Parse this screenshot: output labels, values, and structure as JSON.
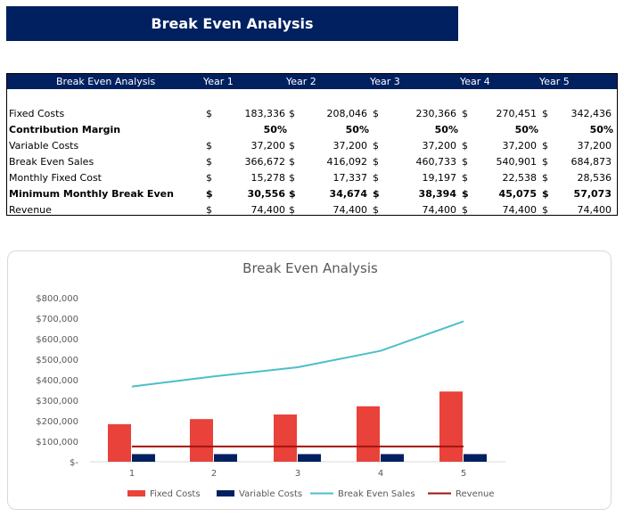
{
  "title": "Break Even Analysis",
  "table": {
    "header": [
      "Break Even Analysis",
      "Year 1",
      "Year 2",
      "Year 3",
      "Year 4",
      "Year 5"
    ],
    "rows": [
      {
        "label": "Fixed Costs",
        "bold": false,
        "currency": true,
        "values": [
          "183,336",
          "208,046",
          "230,366",
          "270,451",
          "342,436"
        ]
      },
      {
        "label": "Contribution Margin",
        "bold": true,
        "currency": false,
        "values": [
          "50%",
          "50%",
          "50%",
          "50%",
          "50%"
        ]
      },
      {
        "label": "Variable Costs",
        "bold": false,
        "currency": true,
        "values": [
          "37,200",
          "37,200",
          "37,200",
          "37,200",
          "37,200"
        ]
      },
      {
        "label": "Break Even Sales",
        "bold": false,
        "currency": true,
        "values": [
          "366,672",
          "416,092",
          "460,733",
          "540,901",
          "684,873"
        ]
      },
      {
        "label": "Monthly Fixed Cost",
        "bold": false,
        "currency": true,
        "values": [
          "15,278",
          "17,337",
          "19,197",
          "22,538",
          "28,536"
        ]
      },
      {
        "label": "Minimum Monthly Break Even",
        "bold": true,
        "currency": true,
        "values": [
          "30,556",
          "34,674",
          "38,394",
          "45,075",
          "57,073"
        ]
      },
      {
        "label": "Revenue",
        "bold": false,
        "currency": true,
        "values": [
          "74,400",
          "74,400",
          "74,400",
          "74,400",
          "74,400"
        ]
      }
    ],
    "currency_symbol": "$"
  },
  "chart_data": {
    "type": "bar",
    "title": "Break Even Analysis",
    "categories": [
      "1",
      "2",
      "3",
      "4",
      "5"
    ],
    "ylim": [
      0,
      800000
    ],
    "yticks": [
      "$-",
      "$100,000",
      "$200,000",
      "$300,000",
      "$400,000",
      "$500,000",
      "$600,000",
      "$700,000",
      "$800,000"
    ],
    "grid": false,
    "legend_position": "bottom",
    "series": [
      {
        "name": "Fixed Costs",
        "kind": "bar",
        "color": "#e8423a",
        "values": [
          183336,
          208046,
          230366,
          270451,
          342436
        ]
      },
      {
        "name": "Variable Costs",
        "kind": "bar",
        "color": "#002060",
        "values": [
          37200,
          37200,
          37200,
          37200,
          37200
        ]
      },
      {
        "name": "Break Even Sales",
        "kind": "line",
        "color": "#4bbfc8",
        "values": [
          366672,
          416092,
          460733,
          540901,
          684873
        ]
      },
      {
        "name": "Revenue",
        "kind": "line",
        "color": "#a3120e",
        "values": [
          74400,
          74400,
          74400,
          74400,
          74400
        ]
      }
    ]
  }
}
